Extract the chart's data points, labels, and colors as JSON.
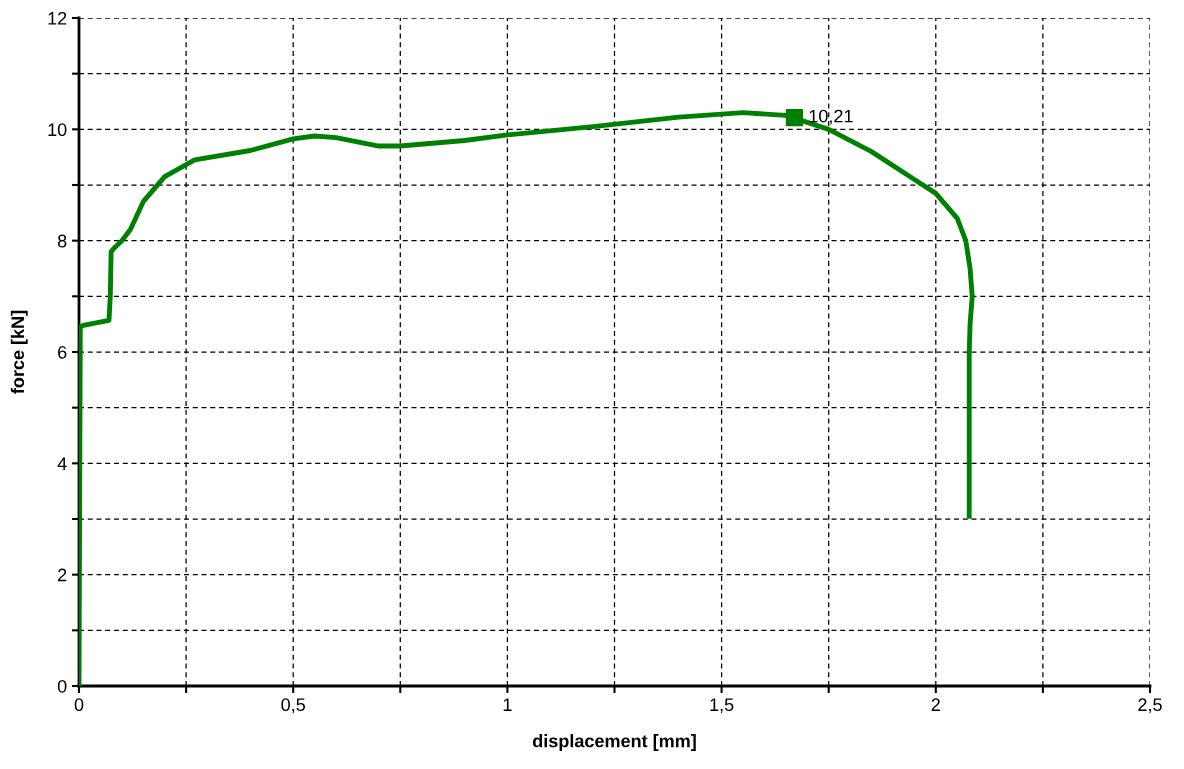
{
  "chart_data": {
    "type": "line",
    "xlabel": "displacement [mm]",
    "ylabel": "force [kN]",
    "xlim": [
      0,
      2.5
    ],
    "ylim": [
      0,
      12
    ],
    "xticks": [
      0,
      {
        "value": 0.25,
        "label": null
      },
      {
        "value": 0.5,
        "label": "0,5"
      },
      {
        "value": 0.75,
        "label": null
      },
      1,
      {
        "value": 1.25,
        "label": null
      },
      {
        "value": 1.5,
        "label": "1,5"
      },
      {
        "value": 1.75,
        "label": null
      },
      2,
      {
        "value": 2.25,
        "label": null
      },
      {
        "value": 2.5,
        "label": "2,5"
      }
    ],
    "yticks": [
      0,
      {
        "value": 1,
        "label": null
      },
      2,
      {
        "value": 3,
        "label": null
      },
      4,
      {
        "value": 5,
        "label": null
      },
      6,
      {
        "value": 7,
        "label": null
      },
      8,
      {
        "value": 9,
        "label": null
      },
      10,
      {
        "value": 11,
        "label": null
      },
      12
    ],
    "grid": true,
    "marker": "none",
    "line_style": "solid",
    "series": [
      {
        "color": "#008000",
        "x": [
          0,
          0.003,
          0.01,
          0.07,
          0.073,
          0.075,
          0.08,
          0.1,
          0.12,
          0.15,
          0.2,
          0.27,
          0.4,
          0.5,
          0.55,
          0.6,
          0.7,
          0.75,
          0.9,
          1.0,
          1.2,
          1.4,
          1.55,
          1.65,
          1.75,
          1.85,
          1.95,
          2.0,
          2.05,
          2.07,
          2.08,
          2.085,
          2.08,
          2.078,
          2.078
        ],
        "values": [
          0,
          6.45,
          6.48,
          6.57,
          7.0,
          7.8,
          7.85,
          8.0,
          8.2,
          8.7,
          9.15,
          9.45,
          9.62,
          9.83,
          9.88,
          9.85,
          9.7,
          9.7,
          9.8,
          9.9,
          10.05,
          10.22,
          10.3,
          10.25,
          10.0,
          9.6,
          9.1,
          8.85,
          8.4,
          8.0,
          7.5,
          7.0,
          6.5,
          6.0,
          3.05
        ]
      },
      {
        "type": "scatter",
        "color": "#008000",
        "marker": "square",
        "x": [
          1.67
        ],
        "values": [
          10.21
        ],
        "value_labels": [
          "10,21"
        ]
      }
    ]
  }
}
